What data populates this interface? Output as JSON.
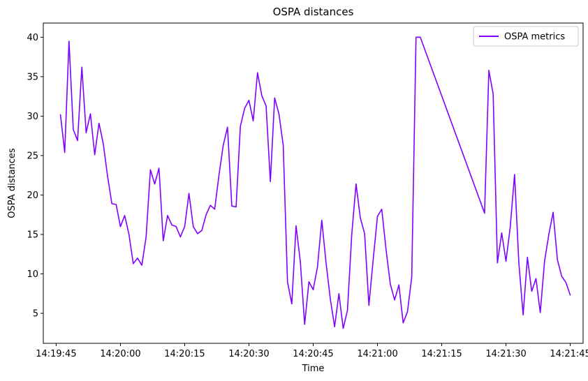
{
  "chart_data": {
    "type": "line",
    "title": "OSPA distances",
    "xlabel": "Time",
    "ylabel": "OSPA distances",
    "xlim": [
      "14:19:42",
      "14:21:48"
    ],
    "ylim": [
      1.2,
      41.8
    ],
    "x_ticks": [
      "14:19:45",
      "14:20:00",
      "14:20:15",
      "14:20:30",
      "14:20:45",
      "14:21:00",
      "14:21:15",
      "14:21:30",
      "14:21:45"
    ],
    "y_ticks": [
      5,
      10,
      15,
      20,
      25,
      30,
      35,
      40
    ],
    "grid": false,
    "legend": {
      "position": "top-right"
    },
    "series": [
      {
        "name": "OSPA metrics",
        "color": "#8000ff",
        "x": [
          "14:19:46",
          "14:19:47",
          "14:19:48",
          "14:19:49",
          "14:19:50",
          "14:19:51",
          "14:19:52",
          "14:19:53",
          "14:19:54",
          "14:19:55",
          "14:19:56",
          "14:19:57",
          "14:19:58",
          "14:19:59",
          "14:20:00",
          "14:20:01",
          "14:20:02",
          "14:20:03",
          "14:20:04",
          "14:20:05",
          "14:20:06",
          "14:20:07",
          "14:20:08",
          "14:20:09",
          "14:20:10",
          "14:20:11",
          "14:20:12",
          "14:20:13",
          "14:20:14",
          "14:20:15",
          "14:20:16",
          "14:20:17",
          "14:20:18",
          "14:20:19",
          "14:20:20",
          "14:20:21",
          "14:20:22",
          "14:20:23",
          "14:20:24",
          "14:20:25",
          "14:20:26",
          "14:20:27",
          "14:20:28",
          "14:20:29",
          "14:20:30",
          "14:20:31",
          "14:20:32",
          "14:20:33",
          "14:20:34",
          "14:20:35",
          "14:20:36",
          "14:20:37",
          "14:20:38",
          "14:20:39",
          "14:20:40",
          "14:20:41",
          "14:20:42",
          "14:20:43",
          "14:20:44",
          "14:20:45",
          "14:20:46",
          "14:20:47",
          "14:20:48",
          "14:20:49",
          "14:20:50",
          "14:20:51",
          "14:20:52",
          "14:20:53",
          "14:20:54",
          "14:20:55",
          "14:20:56",
          "14:20:57",
          "14:20:58",
          "14:20:59",
          "14:21:00",
          "14:21:01",
          "14:21:02",
          "14:21:03",
          "14:21:04",
          "14:21:05",
          "14:21:06",
          "14:21:07",
          "14:21:08",
          "14:21:09",
          "14:21:10",
          "14:21:25",
          "14:21:26",
          "14:21:27",
          "14:21:28",
          "14:21:29",
          "14:21:30",
          "14:21:31",
          "14:21:32",
          "14:21:33",
          "14:21:34",
          "14:21:35",
          "14:21:36",
          "14:21:37",
          "14:21:38",
          "14:21:39",
          "14:21:40",
          "14:21:41",
          "14:21:42",
          "14:21:43",
          "14:21:44",
          "14:21:45"
        ],
        "y": [
          30.2,
          25.4,
          39.5,
          28.3,
          26.9,
          36.2,
          27.9,
          30.3,
          25.1,
          29.1,
          26.5,
          22.4,
          18.9,
          18.8,
          16.0,
          17.4,
          15.0,
          11.3,
          12.0,
          11.1,
          14.7,
          23.2,
          21.4,
          23.4,
          14.2,
          17.4,
          16.2,
          16.0,
          14.7,
          16.0,
          20.2,
          16.0,
          15.1,
          15.5,
          17.5,
          18.7,
          18.2,
          22.5,
          26.3,
          28.6,
          18.6,
          18.5,
          28.7,
          31.0,
          32.0,
          29.4,
          35.5,
          32.6,
          31.3,
          21.7,
          32.3,
          30.3,
          26.3,
          9.0,
          6.2,
          16.1,
          11.5,
          3.6,
          9.0,
          8.0,
          10.9,
          16.8,
          11.4,
          6.8,
          3.3,
          7.5,
          3.1,
          5.4,
          15.0,
          21.4,
          17.1,
          15.1,
          6.0,
          11.8,
          17.3,
          18.2,
          13.1,
          8.7,
          6.7,
          8.6,
          3.8,
          5.2,
          9.6,
          40.0,
          40.0,
          17.7,
          35.8,
          32.8,
          11.4,
          15.2,
          11.6,
          16.0,
          22.6,
          11.4,
          4.8,
          12.1,
          7.8,
          9.4,
          5.1,
          11.6,
          15.0,
          17.8,
          11.8,
          9.7,
          8.9,
          7.3
        ]
      }
    ]
  }
}
